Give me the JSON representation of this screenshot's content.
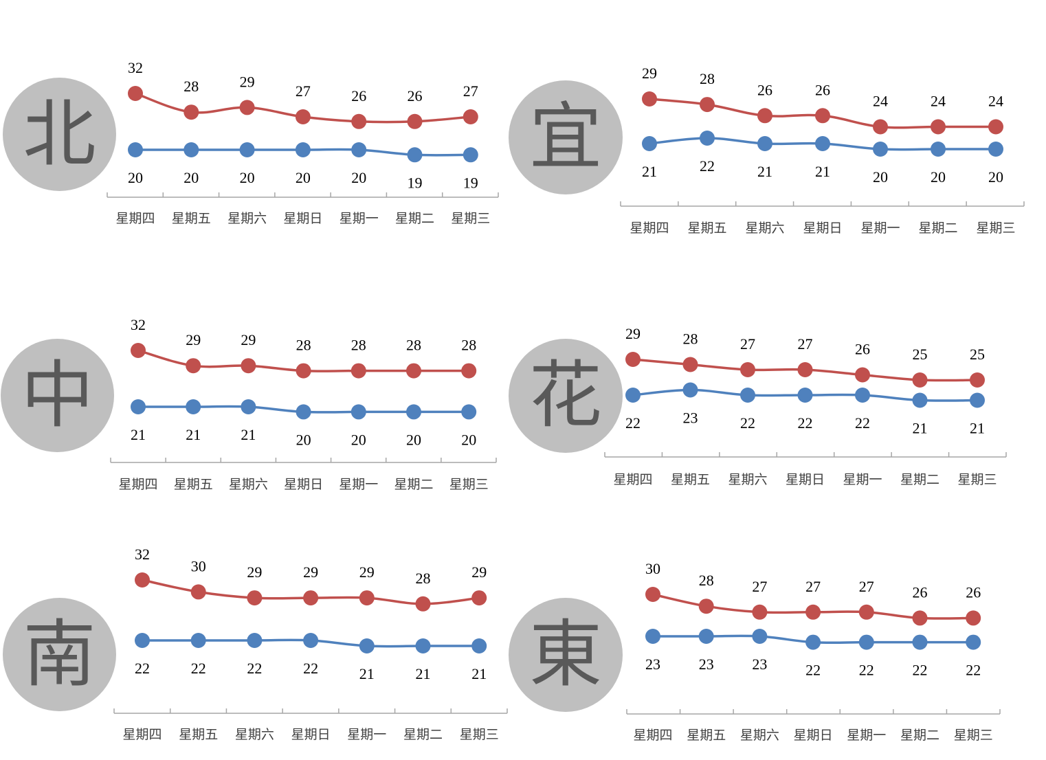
{
  "colors": {
    "high": "#c0504d",
    "low": "#4f81bd",
    "axis": "#a6a6a6",
    "circle": "#bfbfbf",
    "circle_text": "#595959"
  },
  "chart_data": [
    {
      "type": "line",
      "region": "北",
      "categories": [
        "星期四",
        "星期五",
        "星期六",
        "星期日",
        "星期一",
        "星期二",
        "星期三"
      ],
      "series": [
        {
          "key": "high",
          "values": [
            32,
            28,
            29,
            27,
            26,
            26,
            27
          ]
        },
        {
          "key": "low",
          "values": [
            20,
            20,
            20,
            20,
            20,
            19,
            19
          ]
        }
      ]
    },
    {
      "type": "line",
      "region": "宜",
      "categories": [
        "星期四",
        "星期五",
        "星期六",
        "星期日",
        "星期一",
        "星期二",
        "星期三"
      ],
      "series": [
        {
          "key": "high",
          "values": [
            29,
            28,
            26,
            26,
            24,
            24,
            24
          ]
        },
        {
          "key": "low",
          "values": [
            21,
            22,
            21,
            21,
            20,
            20,
            20
          ]
        }
      ]
    },
    {
      "type": "line",
      "region": "中",
      "categories": [
        "星期四",
        "星期五",
        "星期六",
        "星期日",
        "星期一",
        "星期二",
        "星期三"
      ],
      "series": [
        {
          "key": "high",
          "values": [
            32,
            29,
            29,
            28,
            28,
            28,
            28
          ]
        },
        {
          "key": "low",
          "values": [
            21,
            21,
            21,
            20,
            20,
            20,
            20
          ]
        }
      ]
    },
    {
      "type": "line",
      "region": "花",
      "categories": [
        "星期四",
        "星期五",
        "星期六",
        "星期日",
        "星期一",
        "星期二",
        "星期三"
      ],
      "series": [
        {
          "key": "high",
          "values": [
            29,
            28,
            27,
            27,
            26,
            25,
            25
          ]
        },
        {
          "key": "low",
          "values": [
            22,
            23,
            22,
            22,
            22,
            21,
            21
          ]
        }
      ]
    },
    {
      "type": "line",
      "region": "南",
      "categories": [
        "星期四",
        "星期五",
        "星期六",
        "星期日",
        "星期一",
        "星期二",
        "星期三"
      ],
      "series": [
        {
          "key": "high",
          "values": [
            32,
            30,
            29,
            29,
            29,
            28,
            29
          ]
        },
        {
          "key": "low",
          "values": [
            22,
            22,
            22,
            22,
            21,
            21,
            21
          ]
        }
      ]
    },
    {
      "type": "line",
      "region": "東",
      "categories": [
        "星期四",
        "星期五",
        "星期六",
        "星期日",
        "星期一",
        "星期二",
        "星期三"
      ],
      "series": [
        {
          "key": "high",
          "values": [
            30,
            28,
            27,
            27,
            27,
            26,
            26
          ]
        },
        {
          "key": "low",
          "values": [
            23,
            23,
            23,
            22,
            22,
            22,
            22
          ]
        }
      ]
    }
  ]
}
